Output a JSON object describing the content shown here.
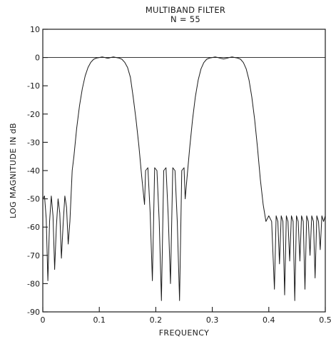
{
  "chart_data": {
    "type": "line",
    "title": "MULTIBAND FILTER",
    "subtitle": "N = 55",
    "xlabel": "FREQUENCY",
    "ylabel": "LOG MAGNITUDE IN dB",
    "xlim": [
      0,
      0.5
    ],
    "ylim": [
      -90,
      10
    ],
    "x_ticks": [
      0,
      0.1,
      0.2,
      0.3,
      0.4,
      0.5
    ],
    "x_tick_labels": [
      "0",
      "0.1",
      "0.2",
      "0.3",
      "0.4",
      "0.5"
    ],
    "y_ticks": [
      10,
      0,
      -10,
      -20,
      -30,
      -40,
      -50,
      -60,
      -70,
      -80,
      -90
    ],
    "y_tick_labels": [
      "10",
      "0",
      "-10",
      "-20",
      "-30",
      "-40",
      "-50",
      "-60",
      "-70",
      "-80",
      "-90"
    ],
    "grid": false,
    "reference_line_y": 0,
    "bands": [
      {
        "range": [
          0,
          0.05
        ],
        "type": "stopband",
        "ripple_peak_db": -49
      },
      {
        "range": [
          0.1,
          0.15
        ],
        "type": "passband",
        "ripple_peak_db": 0
      },
      {
        "range": [
          0.18,
          0.25
        ],
        "type": "stopband",
        "ripple_peak_db": -39
      },
      {
        "range": [
          0.3,
          0.35
        ],
        "type": "passband",
        "ripple_peak_db": 0
      },
      {
        "range": [
          0.41,
          0.5
        ],
        "type": "stopband",
        "ripple_peak_db": -56
      }
    ],
    "series": [
      {
        "x": [
          0,
          0.003,
          0.006,
          0.009,
          0.012,
          0.015,
          0.018,
          0.021,
          0.024,
          0.027,
          0.03,
          0.033,
          0.036,
          0.039,
          0.042,
          0.045,
          0.048,
          0.05,
          0.052,
          0.055,
          0.06,
          0.065,
          0.07,
          0.075,
          0.08,
          0.085,
          0.09,
          0.095,
          0.1,
          0.105,
          0.11,
          0.115,
          0.12,
          0.125,
          0.13,
          0.135,
          0.14,
          0.145,
          0.15,
          0.155,
          0.16,
          0.165,
          0.17,
          0.175,
          0.178,
          0.18,
          0.182,
          0.186,
          0.19,
          0.194,
          0.198,
          0.202,
          0.206,
          0.21,
          0.214,
          0.218,
          0.222,
          0.226,
          0.23,
          0.234,
          0.238,
          0.242,
          0.246,
          0.25,
          0.252,
          0.255,
          0.26,
          0.265,
          0.27,
          0.275,
          0.28,
          0.285,
          0.29,
          0.295,
          0.3,
          0.305,
          0.31,
          0.315,
          0.32,
          0.325,
          0.33,
          0.335,
          0.34,
          0.345,
          0.35,
          0.355,
          0.36,
          0.365,
          0.37,
          0.375,
          0.38,
          0.385,
          0.39,
          0.395,
          0.4,
          0.405,
          0.41,
          0.413,
          0.416,
          0.419,
          0.422,
          0.425,
          0.428,
          0.431,
          0.434,
          0.437,
          0.44,
          0.443,
          0.446,
          0.449,
          0.452,
          0.455,
          0.458,
          0.461,
          0.464,
          0.467,
          0.47,
          0.473,
          0.476,
          0.479,
          0.482,
          0.485,
          0.488,
          0.491,
          0.494,
          0.497,
          0.5
        ],
        "y": [
          -50,
          -49,
          -57,
          -79,
          -58,
          -49,
          -56,
          -75,
          -60,
          -50,
          -55,
          -71,
          -59,
          -49,
          -53,
          -66,
          -58,
          -49,
          -40,
          -35,
          -25,
          -17,
          -11,
          -6.5,
          -3.5,
          -1.7,
          -0.6,
          -0.2,
          0,
          0.2,
          0,
          -0.3,
          0,
          0.2,
          0,
          -0.2,
          -0.6,
          -1.7,
          -3.5,
          -7,
          -14,
          -22,
          -31,
          -42,
          -48,
          -52,
          -40,
          -39,
          -55,
          -79,
          -39,
          -40,
          -58,
          -86,
          -40,
          -39,
          -56,
          -80,
          -39,
          -40,
          -58,
          -86,
          -40,
          -39,
          -50,
          -43,
          -32,
          -22,
          -14,
          -8,
          -4,
          -1.8,
          -0.6,
          -0.2,
          0,
          0.2,
          0,
          -0.3,
          -0.5,
          -0.3,
          0,
          0.2,
          0,
          -0.2,
          -0.6,
          -1.8,
          -4,
          -8,
          -14,
          -22,
          -32,
          -43,
          -52,
          -58,
          -56,
          -58,
          -82,
          -56,
          -58,
          -73,
          -56,
          -58,
          -84,
          -56,
          -58,
          -72,
          -56,
          -58,
          -86,
          -56,
          -58,
          -72,
          -56,
          -58,
          -82,
          -56,
          -58,
          -70,
          -56,
          -58,
          -78,
          -56,
          -58,
          -68,
          -56,
          -58,
          -56
        ]
      }
    ]
  }
}
